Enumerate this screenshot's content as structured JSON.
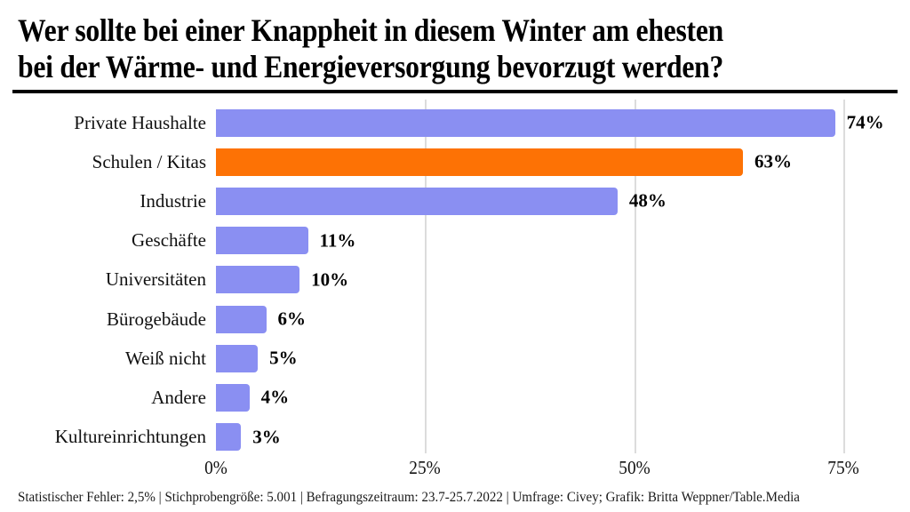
{
  "title": {
    "line1": "Wer sollte bei einer Knappheit in diesem Winter am ehesten",
    "line2": "bei der Wärme- und Energieversorgung bevorzugt werden?"
  },
  "chart_data": {
    "type": "bar",
    "orientation": "horizontal",
    "title": "Wer sollte bei einer Knappheit in diesem Winter am ehesten bei der Wärme- und Energieversorgung bevorzugt werden?",
    "categories": [
      "Private Haushalte",
      "Schulen / Kitas",
      "Industrie",
      "Geschäfte",
      "Universitäten",
      "Bürogebäude",
      "Weiß nicht",
      "Andere",
      "Kultureinrichtungen"
    ],
    "values": [
      74,
      63,
      48,
      11,
      10,
      6,
      5,
      4,
      3
    ],
    "value_labels": [
      "74%",
      "63%",
      "48%",
      "11%",
      "10%",
      "6%",
      "5%",
      "4%",
      "3%"
    ],
    "highlight_index": 1,
    "xlim": [
      0,
      75
    ],
    "x_ticks": [
      "0%",
      "25%",
      "50%",
      "75%"
    ],
    "x_tick_values": [
      0,
      25,
      50,
      75
    ],
    "grid": true,
    "legend": "none",
    "colors": {
      "bar_default": "#8a8ff2",
      "bar_highlight": "#fd7205",
      "gridline": "#dcdcdc",
      "text": "#111111"
    }
  },
  "footer": {
    "text": "Statistischer Fehler: 2,5% | Stichprobengröße: 5.001 | Befragungszeitraum: 23.7-25.7.2022 | Umfrage: Civey; Grafik: Britta Weppner/Table.Media"
  }
}
